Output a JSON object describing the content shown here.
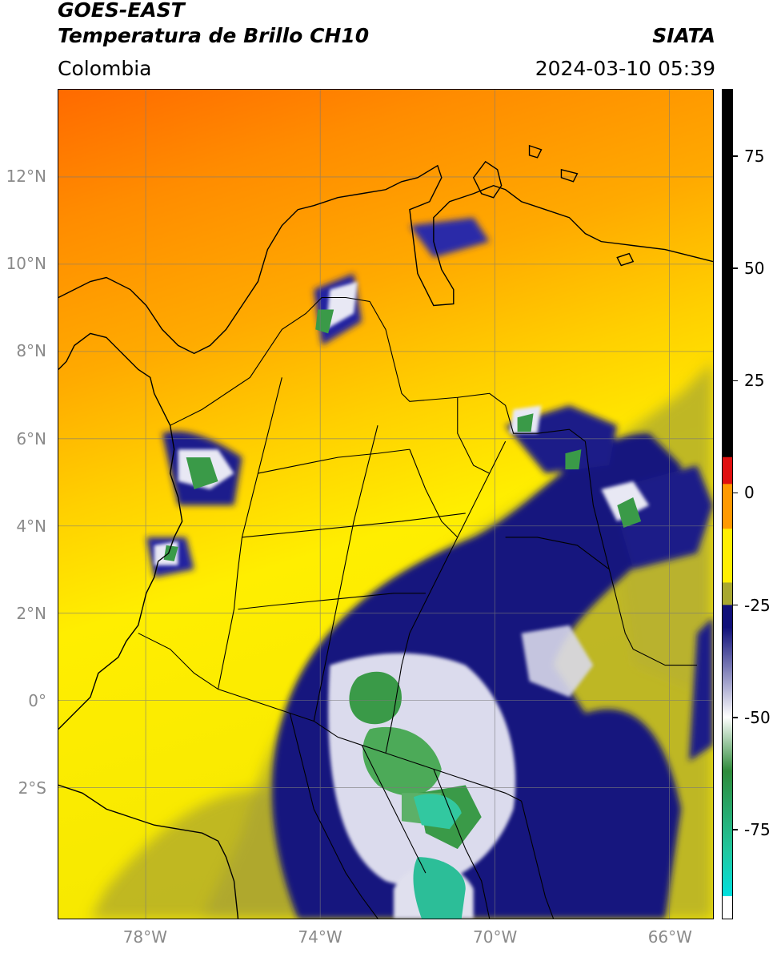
{
  "header": {
    "satellite": "GOES-EAST",
    "product": "Temperatura de Brillo CH10",
    "brand": "SIATA",
    "region": "Colombia",
    "timestamp": "2024-03-10 05:39"
  },
  "map": {
    "lat_ticks": [
      {
        "value": 12,
        "label": "12°N"
      },
      {
        "value": 10,
        "label": "10°N"
      },
      {
        "value": 8,
        "label": "8°N"
      },
      {
        "value": 6,
        "label": "6°N"
      },
      {
        "value": 4,
        "label": "4°N"
      },
      {
        "value": 2,
        "label": "2°N"
      },
      {
        "value": 0,
        "label": "0°"
      },
      {
        "value": -2,
        "label": "2°S"
      }
    ],
    "lon_ticks": [
      {
        "value": -78,
        "label": "78°W"
      },
      {
        "value": -74,
        "label": "74°W"
      },
      {
        "value": -70,
        "label": "70°W"
      },
      {
        "value": -66,
        "label": "66°W"
      }
    ],
    "extent": {
      "lon_min": -80,
      "lon_max": -65,
      "lat_min": -5,
      "lat_max": 14
    }
  },
  "colorbar": {
    "range": [
      -95,
      90
    ],
    "ticks": [
      {
        "value": 75,
        "label": "75"
      },
      {
        "value": 50,
        "label": "50"
      },
      {
        "value": 25,
        "label": "25"
      },
      {
        "value": 0,
        "label": "0"
      },
      {
        "value": -25,
        "label": "-25"
      },
      {
        "value": -50,
        "label": "-50"
      },
      {
        "value": -75,
        "label": "-75"
      }
    ],
    "colors": {
      "black": "#000000",
      "red": "#e01010",
      "orange": "#ff9900",
      "yellow": "#ffef00",
      "olive": "#a8a830",
      "navy": "#10107a",
      "white": "#ffffff",
      "green": "#2e8b3a",
      "teal": "#20c8a0",
      "cyan": "#00e0e0"
    }
  }
}
